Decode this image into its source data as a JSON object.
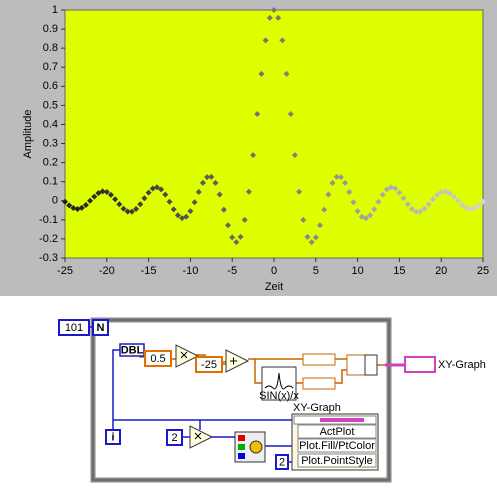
{
  "chart_data": {
    "type": "scatter",
    "x_label": "Zeit",
    "y_label": "Amplitude",
    "x": [
      -25,
      -24.5,
      -24,
      -23.5,
      -23,
      -22.5,
      -22,
      -21.5,
      -21,
      -20.5,
      -20,
      -19.5,
      -19,
      -18.5,
      -18,
      -17.5,
      -17,
      -16.5,
      -16,
      -15.5,
      -15,
      -14.5,
      -14,
      -13.5,
      -13,
      -12.5,
      -12,
      -11.5,
      -11,
      -10.5,
      -10,
      -9.5,
      -9,
      -8.5,
      -8,
      -7.5,
      -7,
      -6.5,
      -6,
      -5.5,
      -5,
      -4.5,
      -4,
      -3.5,
      -3,
      -2.5,
      -2,
      -1.5,
      -1,
      -0.5,
      0,
      0.5,
      1,
      1.5,
      2,
      2.5,
      3,
      3.5,
      4,
      4.5,
      5,
      5.5,
      6,
      6.5,
      7,
      7.5,
      8,
      8.5,
      9,
      9.5,
      10,
      10.5,
      11,
      11.5,
      12,
      12.5,
      13,
      13.5,
      14,
      14.5,
      15,
      15.5,
      16,
      16.5,
      17,
      17.5,
      18,
      18.5,
      19,
      19.5,
      20,
      20.5,
      21,
      21.5,
      22,
      22.5,
      23,
      23.5,
      24,
      24.5,
      25
    ],
    "values": [
      -0.005,
      -0.024,
      -0.038,
      -0.043,
      -0.037,
      -0.022,
      0,
      0.022,
      0.04,
      0.049,
      0.046,
      0.031,
      0.008,
      -0.018,
      -0.042,
      -0.056,
      -0.057,
      -0.043,
      -0.018,
      0.013,
      0.043,
      0.064,
      0.071,
      0.06,
      0.032,
      -0.005,
      -0.045,
      -0.076,
      -0.091,
      -0.084,
      -0.054,
      -0.008,
      0.046,
      0.094,
      0.124,
      0.125,
      0.094,
      0.033,
      -0.047,
      -0.128,
      -0.192,
      -0.217,
      -0.189,
      -0.1,
      0.047,
      0.239,
      0.455,
      0.665,
      0.841,
      0.959,
      1,
      0.959,
      0.841,
      0.665,
      0.455,
      0.239,
      0.047,
      -0.1,
      -0.189,
      -0.217,
      -0.192,
      -0.128,
      -0.047,
      0.033,
      0.094,
      0.125,
      0.124,
      0.094,
      0.046,
      -0.008,
      -0.054,
      -0.084,
      -0.091,
      -0.076,
      -0.045,
      -0.005,
      0.032,
      0.06,
      0.071,
      0.064,
      0.043,
      0.013,
      -0.018,
      -0.043,
      -0.057,
      -0.056,
      -0.042,
      -0.018,
      0.008,
      0.031,
      0.046,
      0.049,
      0.04,
      0.022,
      0,
      -0.022,
      -0.037,
      -0.043,
      -0.038,
      -0.024,
      -0.005
    ],
    "point_colors": [
      "#1e1e1e",
      "#d4d4d4"
    ],
    "plot_background": "#ddff00",
    "xlim": [
      -25,
      25
    ],
    "xticks": [
      -25,
      -20,
      -15,
      -10,
      -5,
      0,
      5,
      10,
      15,
      20,
      25
    ],
    "ylim": [
      -0.3,
      1
    ],
    "yticks": [
      -0.3,
      -0.2,
      -0.1,
      0,
      0.1,
      0.2,
      0.3,
      0.4,
      0.5,
      0.6,
      0.7,
      0.8,
      0.9,
      1
    ],
    "grid": false
  },
  "diagram": {
    "loop_count": "101",
    "count_terminal": "N",
    "iteration_terminal": "i",
    "convert": "DBL",
    "const_step": "0.5",
    "const_offset": "-25",
    "sinc_icon": "SIN(x)/x",
    "const_mult": "2",
    "const_style": "2",
    "property_node": {
      "label": "XY-Graph",
      "rows": [
        "ActPlot",
        "Plot.Fill/PtColor",
        "Plot.PointStyle"
      ]
    },
    "indicator_label": "XY-Graph"
  }
}
